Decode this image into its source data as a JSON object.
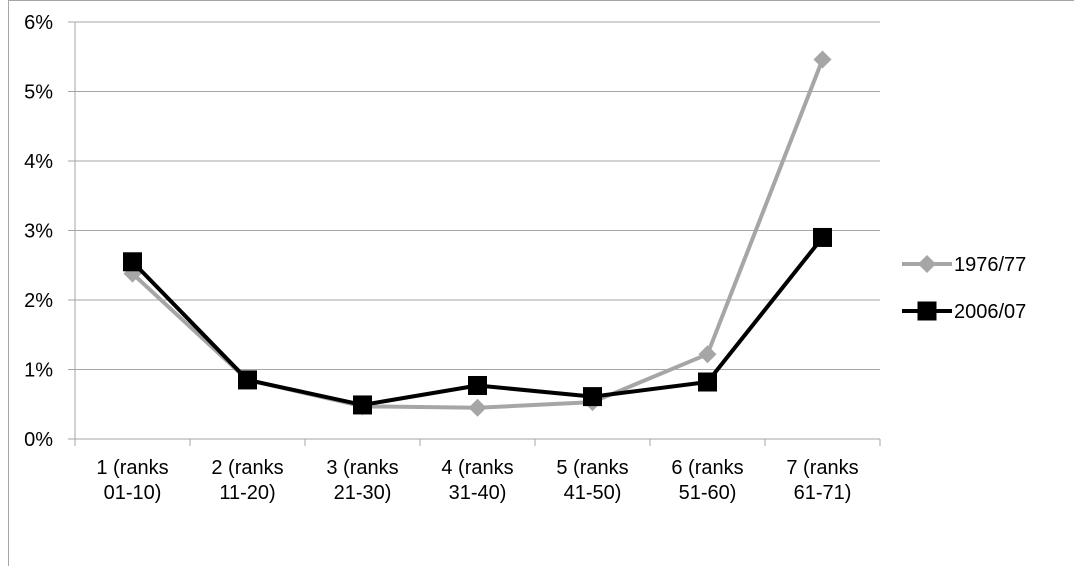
{
  "chart_data": {
    "type": "line",
    "title": "",
    "xlabel": "",
    "ylabel": "",
    "categories": [
      [
        "1  (ranks",
        "01-10)"
      ],
      [
        "2  (ranks",
        "11-20)"
      ],
      [
        "3  (ranks",
        "21-30)"
      ],
      [
        "4  (ranks",
        "31-40)"
      ],
      [
        "5  (ranks",
        "41-50)"
      ],
      [
        "6  (ranks",
        "51-60)"
      ],
      [
        "7  (ranks",
        "61-71)"
      ]
    ],
    "ylim": [
      0,
      6
    ],
    "y_unit": "%",
    "y_ticks": [
      "0%",
      "1%",
      "2%",
      "3%",
      "4%",
      "5%",
      "6%"
    ],
    "grid": "horizontal",
    "legend_position": "right",
    "series": [
      {
        "name": "1976/77",
        "values": [
          2.38,
          0.85,
          0.47,
          0.45,
          0.53,
          1.22,
          5.46
        ],
        "color": "#a6a6a6",
        "marker": "diamond"
      },
      {
        "name": "2006/07",
        "values": [
          2.55,
          0.85,
          0.49,
          0.77,
          0.61,
          0.82,
          2.9
        ],
        "color": "#000000",
        "marker": "square"
      }
    ]
  }
}
